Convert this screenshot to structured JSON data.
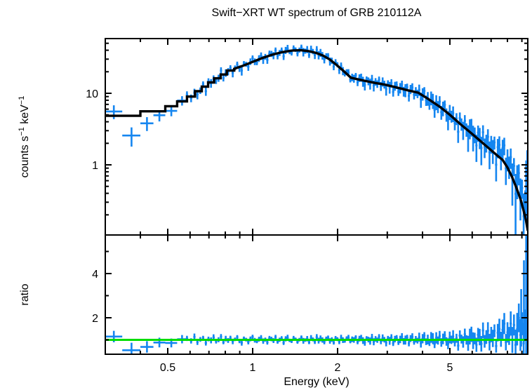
{
  "chart_data": {
    "type": "scatter",
    "title": "Swift−XRT WT spectrum of GRB 210112A",
    "xlabel": "Energy (keV)",
    "x_scale": "log",
    "x_range": [
      0.3,
      9.44
    ],
    "x_major_ticks": [
      0.5,
      1,
      2,
      5
    ],
    "x_major_tick_labels": [
      "0.5",
      "1",
      "2",
      "5"
    ],
    "x_minor_ticks": [
      0.3,
      0.4,
      0.6,
      0.7,
      0.8,
      0.9,
      3,
      4,
      6,
      7,
      8,
      9
    ],
    "legend": "none",
    "grid": "off",
    "colors": {
      "data": "#1586F0",
      "model": "#000000",
      "reference": "#00DD00",
      "axis": "#000000"
    },
    "panels": {
      "spectrum": {
        "ylabel_parts": [
          {
            "t": "counts s"
          },
          {
            "t": "−1",
            "sup": true
          },
          {
            "t": " keV"
          },
          {
            "t": "−1",
            "sup": true
          }
        ],
        "y_scale": "log",
        "y_range": [
          0.105,
          58
        ],
        "y_major_ticks": [
          1,
          10
        ],
        "y_major_tick_labels": [
          "1",
          "10"
        ],
        "y_minor_ticks": [
          0.2,
          0.3,
          0.4,
          0.5,
          0.6,
          0.7,
          0.8,
          0.9,
          2,
          3,
          4,
          5,
          6,
          7,
          8,
          9,
          20,
          30,
          40,
          50
        ],
        "model_steps": [
          [
            0.3,
            0.4,
            4.85
          ],
          [
            0.4,
            0.49,
            5.6
          ],
          [
            0.49,
            0.54,
            6.6
          ],
          [
            0.54,
            0.585,
            7.7
          ],
          [
            0.585,
            0.625,
            9.0
          ],
          [
            0.625,
            0.66,
            10.7
          ],
          [
            0.66,
            0.695,
            12.4
          ],
          [
            0.695,
            0.73,
            14.2
          ],
          [
            0.73,
            0.77,
            16.2
          ],
          [
            0.77,
            0.81,
            18.3
          ],
          [
            0.81,
            0.86,
            20.8
          ]
        ],
        "model_curve": [
          [
            0.86,
            22.0
          ],
          [
            0.93,
            24.5
          ],
          [
            1.0,
            27.5
          ],
          [
            1.08,
            31.0
          ],
          [
            1.17,
            34.5
          ],
          [
            1.27,
            37.5
          ],
          [
            1.38,
            39.5
          ],
          [
            1.48,
            40.0
          ],
          [
            1.58,
            38.8
          ],
          [
            1.68,
            36.6
          ],
          [
            1.78,
            33.5
          ],
          [
            1.88,
            29.5
          ],
          [
            1.98,
            25.0
          ],
          [
            2.1,
            20.5
          ],
          [
            2.23,
            16.5
          ],
          [
            2.45,
            15.2
          ],
          [
            2.7,
            14.0
          ],
          [
            2.92,
            13.3
          ],
          [
            3.2,
            12.2
          ],
          [
            3.55,
            11.0
          ],
          [
            3.86,
            10.2
          ],
          [
            4.2,
            8.3
          ],
          [
            4.6,
            6.5
          ],
          [
            5.0,
            5.0
          ],
          [
            5.45,
            3.7
          ],
          [
            5.9,
            2.85
          ],
          [
            6.4,
            2.17
          ],
          [
            6.9,
            1.68
          ],
          [
            7.4,
            1.33
          ],
          [
            7.69,
            1.17
          ],
          [
            8.0,
            0.92
          ],
          [
            8.3,
            0.68
          ],
          [
            8.6,
            0.48
          ],
          [
            8.9,
            0.33
          ],
          [
            9.1,
            0.24
          ],
          [
            9.3,
            0.17
          ],
          [
            9.45,
            0.12
          ]
        ],
        "points": [
          {
            "e": 0.322,
            "elo": 0.3,
            "ehi": 0.345,
            "ratio": 1.15,
            "err_frac": 0.22
          },
          {
            "e": 0.372,
            "elo": 0.345,
            "ehi": 0.4,
            "ratio": 0.53,
            "err_frac": 0.3
          },
          {
            "e": 0.422,
            "elo": 0.4,
            "ehi": 0.445,
            "ratio": 0.68,
            "err_frac": 0.22
          },
          {
            "e": 0.467,
            "elo": 0.445,
            "ehi": 0.49,
            "ratio": 0.88,
            "err_frac": 0.18
          },
          {
            "e": 0.515,
            "elo": 0.49,
            "ehi": 0.54,
            "ratio": 0.86,
            "err_frac": 0.16
          },
          {
            "e": 0.562,
            "elo": 0.54,
            "ehi": 0.585,
            "ratio": 1.03,
            "err_frac": 0.15
          }
        ],
        "extra_bars": [
          {
            "e": 9.32,
            "lo": 0.22,
            "hi": 1.15
          },
          {
            "e": 9.4,
            "lo": 0.45,
            "hi": 1.6
          },
          {
            "e": 9.36,
            "lo": 0.14,
            "hi": 0.55
          }
        ]
      },
      "ratio": {
        "ylabel": "ratio",
        "y_scale": "linear",
        "y_range": [
          0.35,
          5.75
        ],
        "y_major_ticks": [
          2,
          4
        ],
        "y_major_tick_labels": [
          "2",
          "4"
        ],
        "y_minor_ticks": [
          1,
          3,
          5
        ],
        "reference_line": 1,
        "extra_bars": [
          {
            "e": 9.32,
            "lo": 0.35,
            "hi": 5.75
          },
          {
            "e": 9.4,
            "lo": 0.8,
            "hi": 5.75
          },
          {
            "e": 9.15,
            "lo": 0.9,
            "hi": 4.6
          },
          {
            "e": 8.95,
            "lo": 0.7,
            "hi": 3.3
          }
        ]
      }
    },
    "dense": {
      "e_min": 0.585,
      "e_max": 9.25,
      "warp": 0.85,
      "amp_curve": [
        [
          0.3,
          0.15
        ],
        [
          0.6,
          0.16
        ],
        [
          1.0,
          0.14
        ],
        [
          2.0,
          0.13
        ],
        [
          3.0,
          0.16
        ],
        [
          4.0,
          0.2
        ],
        [
          5.0,
          0.25
        ],
        [
          6.0,
          0.32
        ],
        [
          7.0,
          0.4
        ],
        [
          8.0,
          0.5
        ],
        [
          8.7,
          0.58
        ],
        [
          9.3,
          0.68
        ]
      ],
      "err_curve": [
        [
          0.3,
          0.2
        ],
        [
          0.45,
          0.22
        ],
        [
          0.6,
          0.13
        ],
        [
          1.0,
          0.1
        ],
        [
          2.0,
          0.11
        ],
        [
          3.0,
          0.14
        ],
        [
          4.0,
          0.18
        ],
        [
          5.0,
          0.23
        ],
        [
          6.0,
          0.29
        ],
        [
          7.0,
          0.37
        ],
        [
          8.0,
          0.48
        ],
        [
          8.7,
          0.62
        ],
        [
          9.3,
          0.8
        ]
      ],
      "bias_curve": [
        [
          0.3,
          0.0
        ],
        [
          5.5,
          0.0
        ],
        [
          6.5,
          0.07
        ],
        [
          7.5,
          0.16
        ],
        [
          8.5,
          0.28
        ],
        [
          9.3,
          0.42
        ]
      ],
      "noise": [
        0.42,
        -0.31,
        0.85,
        -0.62,
        0.13,
        0.57,
        -0.88,
        0.24,
        -0.15,
        0.7,
        -0.45,
        0.05,
        0.92,
        -0.73,
        0.36,
        -0.2,
        0.61,
        -0.5,
        0.15,
        0.78,
        -0.35,
        -0.9,
        0.48,
        0.08,
        -0.66,
        0.3,
        0.95,
        -0.12,
        -0.55,
        0.22,
        0.67,
        -0.42,
        0.1,
        -0.8,
        0.52,
        0.28,
        -0.25,
        0.88,
        -0.6,
        0.02,
        0.45,
        -0.95,
        0.33,
        0.72,
        -0.18,
        -0.48,
        0.58,
        0.2,
        -0.7,
        0.06,
        0.82,
        -0.33,
        -0.08,
        0.4,
        -0.85,
        0.64,
        0.16,
        -0.58,
        0.9,
        -0.26,
        0.5,
        -0.05,
        -0.75,
        0.35,
        0.68,
        -0.4,
        0.12,
        -0.92,
        0.55,
        0.25,
        -0.63,
        0.8,
        -0.1,
        -0.3,
        0.44,
        0.74,
        -0.52,
        0.18,
        -0.02,
        0.86,
        -0.68,
        0.38,
        0.6,
        -0.22,
        -0.82,
        0.46,
        0.09,
        -0.38,
        0.76,
        -0.58,
        0.29,
        -0.12,
        0.93,
        -0.45,
        0.54,
        0.03,
        -0.78,
        0.41,
        -0.28,
        0.65,
        -0.93,
        0.21,
        0.49,
        -0.65,
        0.11,
        0.83,
        -0.36,
        -0.06,
        0.56,
        -0.84,
        0.31,
        0.71,
        -0.48,
        0.14,
        -0.19,
        0.62,
        -0.74,
        0.27,
        0.97,
        -0.41,
        0.07,
        -0.6,
        0.51,
        0.23,
        -0.87,
        0.39,
        -0.14,
        0.77,
        -0.52,
        0.18,
        0.88,
        -0.29,
        -0.7,
        0.43,
        0.01,
        0.59,
        -0.44,
        0.26,
        -0.96,
        0.69,
        0.12,
        -0.34,
        0.81,
        -0.07,
        -0.57,
        0.37,
        0.66,
        -0.23,
        0.04,
        -0.77,
        0.47,
        0.17,
        -0.64,
        0.89,
        -0.37,
        0.08,
        0.73,
        -0.49,
        0.28,
        -0.13,
        0.58,
        -0.86,
        0.34,
        0.63,
        -0.27,
        0.48,
        0.94,
        -0.53,
        0.19,
        -0.09,
        0.75,
        -0.39,
        0.57,
        -0.71,
        0.23,
        0.84,
        -0.16,
        0.41,
        -0.61,
        0.32
      ]
    }
  }
}
